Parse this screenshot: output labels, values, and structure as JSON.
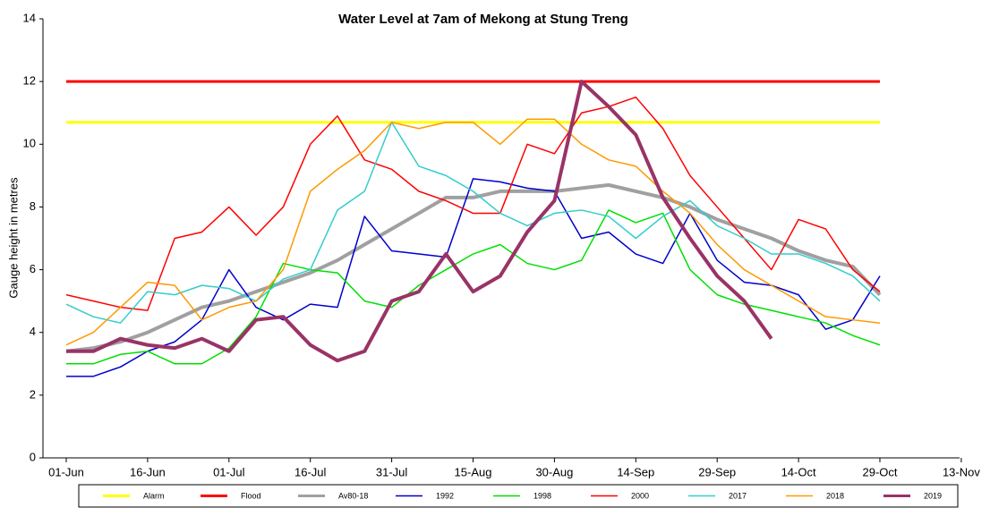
{
  "chart_data": {
    "type": "line",
    "title": "Water Level at 7am of Mekong at Stung Treng",
    "y_label": "Gauge height in metres",
    "categories": [
      "01-Jun",
      null,
      null,
      "16-Jun",
      null,
      null,
      "01-Jul",
      null,
      null,
      "16-Jul",
      null,
      null,
      "31-Jul",
      null,
      null,
      "15-Aug",
      null,
      null,
      "30-Aug",
      null,
      null,
      "14-Sep",
      null,
      null,
      "29-Sep",
      null,
      null,
      "14-Oct",
      null,
      null,
      "29-Oct",
      null,
      null,
      "13-Nov"
    ],
    "ylim": [
      0,
      14
    ],
    "yticks": [
      0,
      2,
      4,
      6,
      8,
      10,
      12,
      14
    ],
    "series": [
      {
        "name": "Alarm",
        "color": "#ffff00",
        "width": 3,
        "values": [
          10.7,
          10.7,
          10.7,
          10.7,
          10.7,
          10.7,
          10.7,
          10.7,
          10.7,
          10.7,
          10.7,
          10.7,
          10.7,
          10.7,
          10.7,
          10.7,
          10.7,
          10.7,
          10.7,
          10.7,
          10.7,
          10.7,
          10.7,
          10.7,
          10.7,
          10.7,
          10.7,
          10.7,
          10.7,
          10.7,
          10.7,
          null,
          null,
          null
        ]
      },
      {
        "name": "Flood",
        "color": "#ff0000",
        "width": 3,
        "values": [
          12,
          12,
          12,
          12,
          12,
          12,
          12,
          12,
          12,
          12,
          12,
          12,
          12,
          12,
          12,
          12,
          12,
          12,
          12,
          12,
          12,
          12,
          12,
          12,
          12,
          12,
          12,
          12,
          12,
          12,
          12,
          null,
          null,
          null
        ]
      },
      {
        "name": "Av80-18",
        "color": "#a0a0a0",
        "width": 4,
        "values": [
          3.4,
          3.5,
          3.7,
          4.0,
          4.4,
          4.8,
          5.0,
          5.3,
          5.6,
          5.9,
          6.3,
          6.8,
          7.3,
          7.8,
          8.3,
          8.3,
          8.5,
          8.5,
          8.5,
          8.6,
          8.7,
          8.5,
          8.3,
          8.0,
          7.6,
          7.3,
          7.0,
          6.6,
          6.3,
          6.1,
          5.2,
          null,
          null,
          null
        ]
      },
      {
        "name": "1992",
        "color": "#0000cc",
        "width": 1.5,
        "values": [
          2.6,
          2.6,
          2.9,
          3.4,
          3.7,
          4.4,
          6.0,
          4.8,
          4.4,
          4.9,
          4.8,
          7.7,
          6.6,
          6.5,
          6.4,
          8.9,
          8.8,
          8.6,
          8.5,
          7.0,
          7.2,
          6.5,
          6.2,
          7.8,
          6.3,
          5.6,
          5.5,
          5.2,
          4.1,
          4.4,
          5.8,
          null,
          null,
          null
        ]
      },
      {
        "name": "1998",
        "color": "#00e000",
        "width": 1.5,
        "values": [
          3.0,
          3.0,
          3.3,
          3.4,
          3.0,
          3.0,
          3.5,
          4.5,
          6.2,
          6.0,
          5.9,
          5.0,
          4.8,
          5.5,
          6.0,
          6.5,
          6.8,
          6.2,
          6.0,
          6.3,
          7.9,
          7.5,
          7.8,
          6.0,
          5.2,
          4.9,
          4.7,
          4.5,
          4.3,
          3.9,
          3.6,
          null,
          null,
          null
        ]
      },
      {
        "name": "2000",
        "color": "#ff0000",
        "width": 1.5,
        "values": [
          5.2,
          5.0,
          4.8,
          4.7,
          7.0,
          7.2,
          8.0,
          7.1,
          8.0,
          10.0,
          10.9,
          9.5,
          9.2,
          8.5,
          8.2,
          7.8,
          7.8,
          10.0,
          9.7,
          11.0,
          11.2,
          11.5,
          10.5,
          9.0,
          8.0,
          7.0,
          6.0,
          7.6,
          7.3,
          6.0,
          5.3,
          null,
          null,
          null
        ]
      },
      {
        "name": "2017",
        "color": "#33cccc",
        "width": 1.5,
        "values": [
          4.9,
          4.5,
          4.3,
          5.3,
          5.2,
          5.5,
          5.4,
          5.0,
          5.7,
          6.0,
          7.9,
          8.5,
          10.7,
          9.3,
          9.0,
          8.5,
          7.8,
          7.4,
          7.8,
          7.9,
          7.7,
          7.0,
          7.7,
          8.2,
          7.4,
          7.0,
          6.5,
          6.5,
          6.2,
          5.8,
          5.0,
          null,
          null,
          null
        ]
      },
      {
        "name": "2018",
        "color": "#ff9900",
        "width": 1.5,
        "values": [
          3.6,
          4.0,
          4.8,
          5.6,
          5.5,
          4.4,
          4.8,
          5.0,
          6.0,
          8.5,
          9.2,
          9.8,
          10.7,
          10.5,
          10.7,
          10.7,
          10.0,
          10.8,
          10.8,
          10.0,
          9.5,
          9.3,
          8.5,
          7.8,
          6.8,
          6.0,
          5.5,
          5.0,
          4.5,
          4.4,
          4.3,
          null,
          null,
          null
        ]
      },
      {
        "name": "2019",
        "color": "#993366",
        "width": 4,
        "values": [
          3.4,
          3.4,
          3.8,
          3.6,
          3.5,
          3.8,
          3.4,
          4.4,
          4.5,
          3.6,
          3.1,
          3.4,
          5.0,
          5.3,
          6.5,
          5.3,
          5.8,
          7.2,
          8.2,
          12.0,
          11.2,
          10.3,
          8.3,
          7.0,
          5.8,
          5.0,
          3.8,
          null,
          null,
          null,
          null,
          null,
          null,
          null
        ]
      }
    ]
  }
}
